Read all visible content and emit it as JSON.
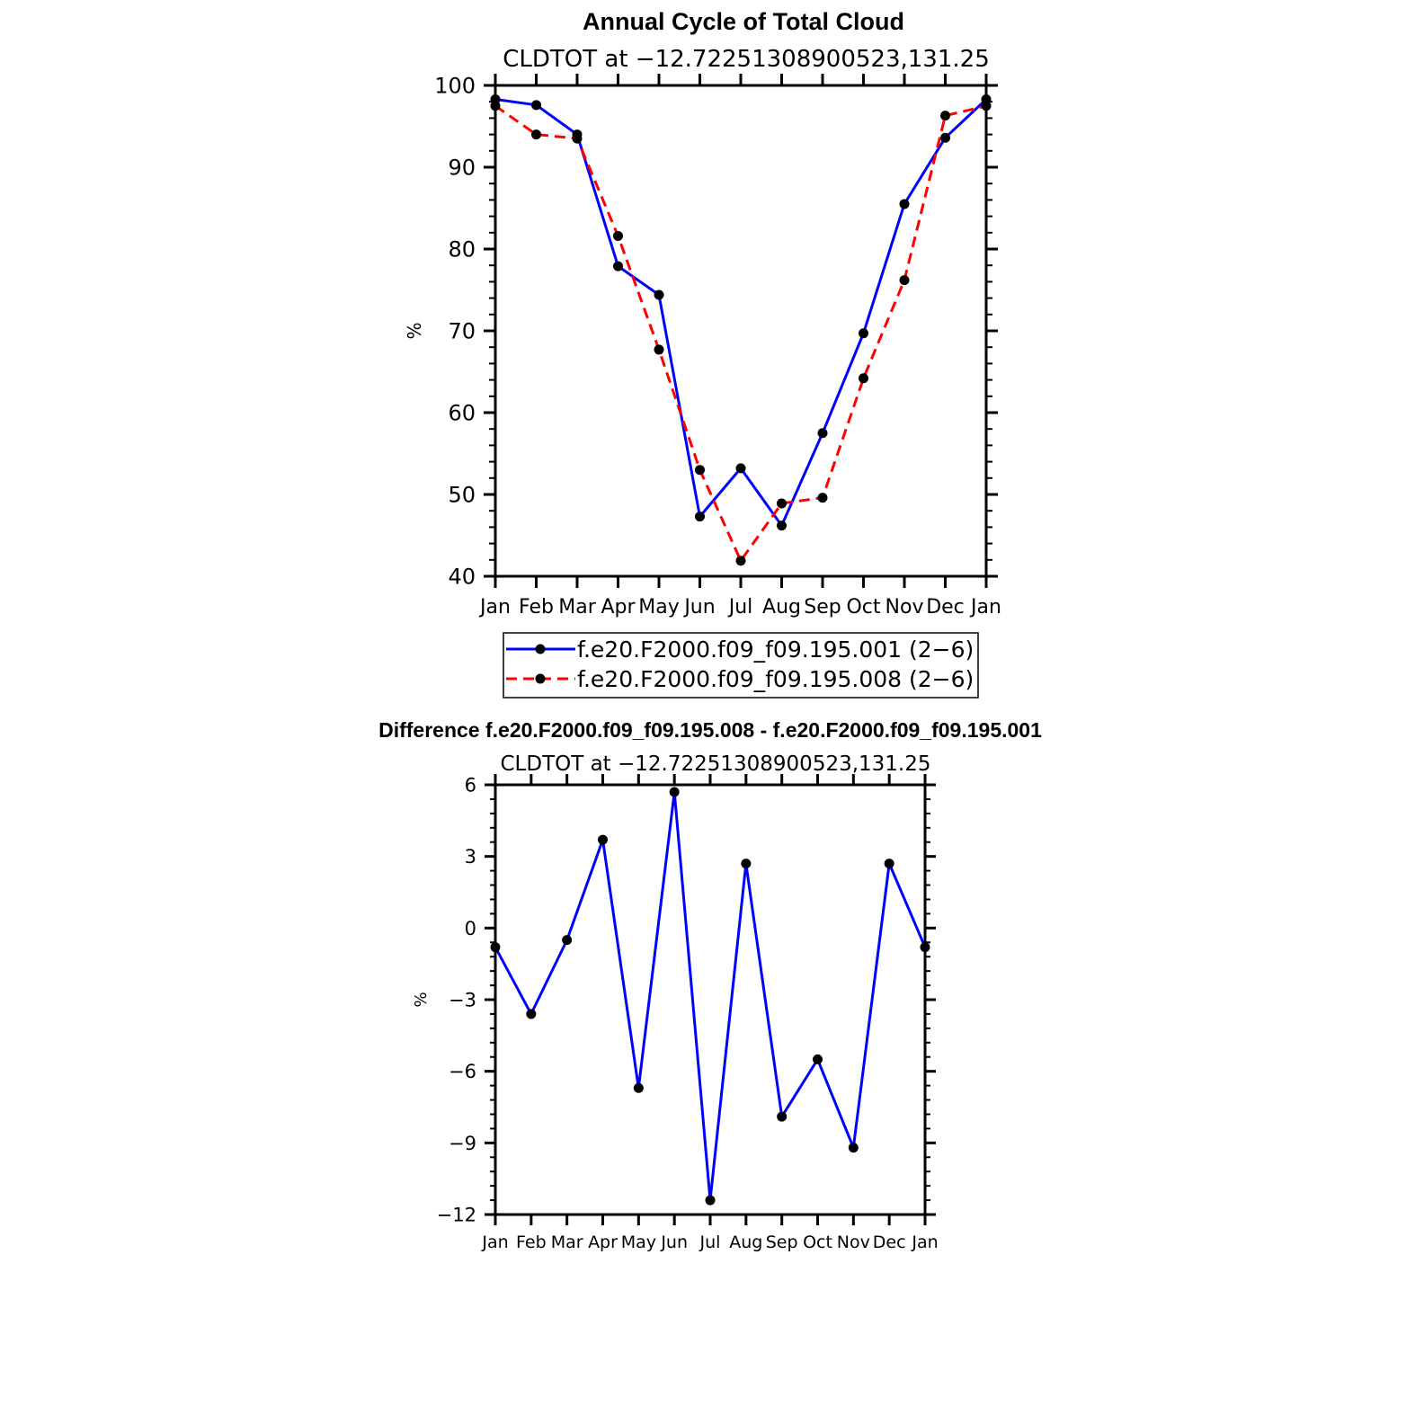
{
  "chart_data": [
    {
      "type": "line",
      "title": "Annual Cycle of Total Cloud",
      "subtitle": "CLDTOT at −12.72251308900523,131.25",
      "xlabel": "",
      "ylabel": "%",
      "categories": [
        "Jan",
        "Feb",
        "Mar",
        "Apr",
        "May",
        "Jun",
        "Jul",
        "Aug",
        "Sep",
        "Oct",
        "Nov",
        "Dec",
        "Jan"
      ],
      "ylim": [
        40,
        100
      ],
      "yticks": [
        40,
        50,
        60,
        70,
        80,
        90,
        100
      ],
      "yticks_labels": [
        "40",
        "50",
        "60",
        "70",
        "80",
        "90",
        "100"
      ],
      "grid": false,
      "legend": "bottom",
      "series": [
        {
          "name": "f.e20.F2000.f09_f09.195.001 (2−6)",
          "color": "#0000ff",
          "dash": "solid",
          "values": [
            98.3,
            97.6,
            94.0,
            77.9,
            74.4,
            47.3,
            53.2,
            46.2,
            57.5,
            69.7,
            85.5,
            93.6,
            98.3
          ]
        },
        {
          "name": "f.e20.F2000.f09_f09.195.008 (2−6)",
          "color": "#ff0000",
          "dash": "dashed",
          "values": [
            97.5,
            94.0,
            93.5,
            81.6,
            67.7,
            53.0,
            41.9,
            48.9,
            49.6,
            64.2,
            76.2,
            96.3,
            97.5
          ]
        }
      ]
    },
    {
      "type": "line",
      "title": "Difference f.e20.F2000.f09_f09.195.008 - f.e20.F2000.f09_f09.195.001",
      "subtitle": "CLDTOT at −12.72251308900523,131.25",
      "xlabel": "",
      "ylabel": "%",
      "categories": [
        "Jan",
        "Feb",
        "Mar",
        "Apr",
        "May",
        "Jun",
        "Jul",
        "Aug",
        "Sep",
        "Oct",
        "Nov",
        "Dec",
        "Jan"
      ],
      "ylim": [
        -12,
        6
      ],
      "yticks": [
        -12,
        -9,
        -6,
        -3,
        0,
        3,
        6
      ],
      "yticks_labels": [
        "−12",
        "−9",
        "−6",
        "−3",
        "0",
        "3",
        "6"
      ],
      "grid": false,
      "series": [
        {
          "color": "#0000ff",
          "dash": "solid",
          "values": [
            -0.8,
            -3.6,
            -0.5,
            3.7,
            -6.7,
            5.7,
            -11.4,
            2.7,
            -7.9,
            -5.5,
            -9.2,
            2.7,
            -0.8
          ]
        }
      ]
    }
  ]
}
